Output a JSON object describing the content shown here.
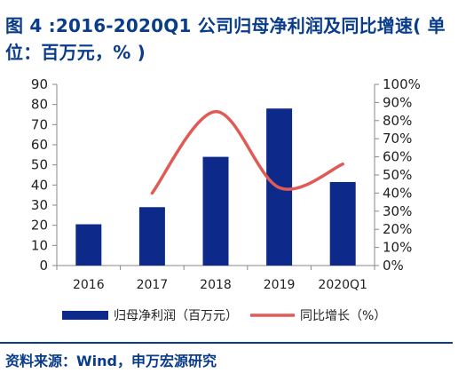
{
  "title": "图 4 :2016-2020Q1 公司归母净利润及同比增速( 单位：百万元，% )",
  "source": "资料来源：Wind，申万宏源研究",
  "colors": {
    "bar": "#0d2a8a",
    "line": "#e05a56",
    "title": "#0a3c8c"
  },
  "chart_data": {
    "type": "bar",
    "categories": [
      "2016",
      "2017",
      "2018",
      "2019",
      "2020Q1"
    ],
    "series": [
      {
        "name": "归母净利润（百万元）",
        "type": "bar",
        "axis": "left",
        "values": [
          20.5,
          29,
          54,
          78,
          41.5
        ]
      },
      {
        "name": "同比增长（%）",
        "type": "line",
        "axis": "right",
        "smooth": true,
        "values": [
          null,
          40,
          85,
          43,
          56
        ]
      }
    ],
    "left_axis": {
      "ylim": [
        0,
        90
      ],
      "ticks": [
        "0",
        "10",
        "20",
        "30",
        "40",
        "50",
        "60",
        "70",
        "80",
        "90"
      ]
    },
    "right_axis": {
      "ylim": [
        0,
        100
      ],
      "ticks": [
        "0%",
        "10%",
        "20%",
        "30%",
        "40%",
        "50%",
        "60%",
        "70%",
        "80%",
        "90%",
        "100%"
      ]
    },
    "grid": false,
    "legend": "bottom"
  }
}
